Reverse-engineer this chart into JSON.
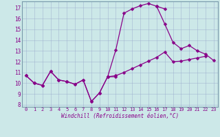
{
  "bg_color": "#cce8e8",
  "line_color": "#880088",
  "grid_color": "#99aacc",
  "xlabel": "Windchill (Refroidissement éolien,°C)",
  "xlim": [
    -0.5,
    23.5
  ],
  "ylim": [
    7.8,
    17.6
  ],
  "xticks": [
    0,
    1,
    2,
    3,
    4,
    5,
    6,
    7,
    8,
    9,
    10,
    11,
    12,
    13,
    14,
    15,
    16,
    17,
    18,
    19,
    20,
    21,
    22,
    23
  ],
  "yticks": [
    8,
    9,
    10,
    11,
    12,
    13,
    14,
    15,
    16,
    17
  ],
  "lines": [
    [
      0,
      1,
      2,
      3,
      4,
      5,
      6,
      7,
      8,
      9,
      10,
      11
    ],
    [
      10.7,
      10.0,
      9.8,
      11.1,
      10.3,
      10.15,
      9.9,
      10.3,
      8.3,
      9.1,
      10.6,
      10.6
    ],
    [
      0,
      1,
      2,
      3,
      4,
      5,
      6,
      7,
      8,
      9,
      10,
      11,
      12,
      13,
      14,
      15,
      16,
      17
    ],
    [
      10.7,
      10.0,
      9.8,
      11.1,
      10.3,
      10.15,
      9.9,
      10.3,
      8.3,
      9.1,
      10.6,
      13.1,
      16.5,
      16.9,
      17.2,
      17.4,
      17.15,
      16.9
    ],
    [
      10,
      11,
      12,
      13,
      14,
      15,
      16,
      17,
      18,
      19,
      20,
      21,
      22
    ],
    [
      10.6,
      10.7,
      11.0,
      11.35,
      11.7,
      12.05,
      12.4,
      12.9,
      12.0,
      12.05,
      12.2,
      12.35,
      12.5
    ],
    [
      16,
      17,
      18,
      19,
      20,
      21,
      22,
      23
    ],
    [
      17.15,
      15.5,
      13.8,
      13.2,
      13.5,
      13.0,
      12.7,
      12.1
    ]
  ]
}
